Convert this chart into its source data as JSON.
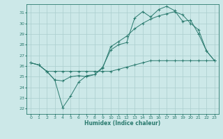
{
  "xlabel": "Humidex (Indice chaleur)",
  "xlim": [
    -0.5,
    23.5
  ],
  "ylim": [
    21.5,
    31.8
  ],
  "xticks": [
    0,
    1,
    2,
    3,
    4,
    5,
    6,
    7,
    8,
    9,
    10,
    11,
    12,
    13,
    14,
    15,
    16,
    17,
    18,
    19,
    20,
    21,
    22,
    23
  ],
  "yticks": [
    22,
    23,
    24,
    25,
    26,
    27,
    28,
    29,
    30,
    31
  ],
  "line_color": "#2a7a6e",
  "bg_color": "#cce8e8",
  "grid_color": "#aacece",
  "line1_x": [
    0,
    1,
    2,
    3,
    4,
    5,
    6,
    7,
    8,
    9,
    10,
    11,
    12,
    13,
    14,
    15,
    16,
    17,
    18,
    19,
    20,
    21,
    22,
    23
  ],
  "line1_y": [
    26.3,
    26.1,
    25.5,
    25.5,
    25.5,
    25.5,
    25.5,
    25.5,
    25.5,
    25.5,
    25.5,
    25.7,
    25.9,
    26.1,
    26.3,
    26.5,
    26.5,
    26.5,
    26.5,
    26.5,
    26.5,
    26.5,
    26.5,
    26.5
  ],
  "line2_x": [
    0,
    1,
    2,
    3,
    4,
    5,
    6,
    7,
    8,
    9,
    10,
    11,
    12,
    13,
    14,
    15,
    16,
    17,
    18,
    19,
    20,
    21,
    22,
    23
  ],
  "line2_y": [
    26.3,
    26.1,
    25.5,
    24.7,
    22.1,
    23.2,
    24.5,
    25.1,
    25.2,
    25.9,
    27.5,
    28.0,
    28.2,
    30.5,
    31.1,
    30.6,
    31.3,
    31.6,
    31.2,
    30.2,
    30.3,
    29.0,
    27.4,
    26.5
  ],
  "line3_x": [
    0,
    1,
    2,
    3,
    4,
    5,
    6,
    7,
    8,
    9,
    10,
    11,
    12,
    13,
    14,
    15,
    16,
    17,
    18,
    19,
    20,
    21,
    22,
    23
  ],
  "line3_y": [
    26.3,
    26.1,
    25.5,
    24.7,
    24.6,
    25.0,
    25.1,
    25.0,
    25.2,
    25.8,
    27.8,
    28.3,
    28.8,
    29.5,
    30.0,
    30.4,
    30.7,
    30.9,
    31.1,
    30.8,
    30.0,
    29.4,
    27.4,
    26.5
  ]
}
